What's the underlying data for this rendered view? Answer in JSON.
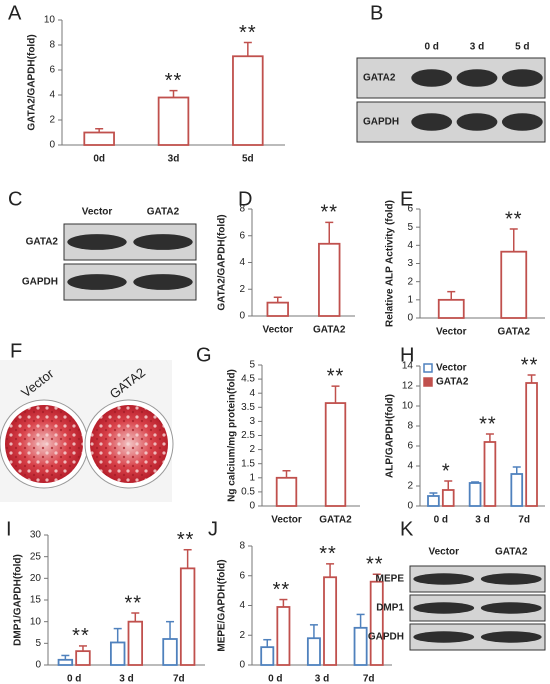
{
  "chart_data": [
    {
      "type": "bar",
      "panel": "A",
      "ylabel": "GATA2/GAPDH(fold)",
      "categories": [
        "0d",
        "3d",
        "5d"
      ],
      "values": [
        1,
        3.8,
        7.1
      ],
      "errors": [
        0.3,
        0.55,
        1.1
      ],
      "annotations": [
        null,
        "**",
        "**"
      ],
      "color": "#c0504d",
      "ylim": [
        0,
        10
      ],
      "yticks": [
        0,
        2,
        4,
        6,
        8,
        10
      ]
    },
    {
      "type": "bar",
      "panel": "D",
      "ylabel": "GATA2/GAPDH(fold)",
      "categories": [
        "Vector",
        "GATA2"
      ],
      "values": [
        1,
        5.4
      ],
      "errors": [
        0.4,
        1.6
      ],
      "annotations": [
        null,
        "**"
      ],
      "color": "#c0504d",
      "ylim": [
        0,
        8
      ],
      "yticks": [
        0,
        2,
        4,
        6,
        8
      ]
    },
    {
      "type": "bar",
      "panel": "E",
      "ylabel": "Relative ALP Activity  (fold)",
      "categories": [
        "Vector",
        "GATA2"
      ],
      "values": [
        1,
        3.65
      ],
      "errors": [
        0.45,
        1.25
      ],
      "annotations": [
        null,
        "**"
      ],
      "color": "#c0504d",
      "ylim": [
        0,
        6
      ],
      "yticks": [
        0,
        1,
        2,
        3,
        4,
        5,
        6
      ]
    },
    {
      "type": "bar",
      "panel": "G",
      "ylabel": "Ng calcium/mg protein(fold)",
      "categories": [
        "Vector",
        "GATA2"
      ],
      "values": [
        1,
        3.65
      ],
      "errors": [
        0.25,
        0.6
      ],
      "annotations": [
        null,
        "**"
      ],
      "color": "#c0504d",
      "ylim": [
        0,
        5
      ],
      "yticks": [
        0,
        0.5,
        1,
        1.5,
        2,
        2.5,
        3,
        3.5,
        4,
        4.5,
        5
      ]
    },
    {
      "type": "bar",
      "panel": "H",
      "ylabel": "ALP/GAPDH(fold)",
      "categories": [
        "0 d",
        "3 d",
        "7d"
      ],
      "series": [
        {
          "name": "Vector",
          "color": "#4f81bd",
          "values": [
            1,
            2.3,
            3.2
          ],
          "errors": [
            0.3,
            0.1,
            0.7
          ]
        },
        {
          "name": "GATA2",
          "color": "#c0504d",
          "values": [
            1.6,
            6.4,
            12.3
          ],
          "errors": [
            0.9,
            0.8,
            0.8
          ]
        }
      ],
      "annotations": [
        "*",
        "**",
        "**"
      ],
      "legend": "upper left",
      "ylim": [
        0,
        14
      ],
      "yticks": [
        0,
        2,
        4,
        6,
        8,
        10,
        12,
        14
      ]
    },
    {
      "type": "bar",
      "panel": "I",
      "ylabel": "DMP1/GAPDH(fold)",
      "categories": [
        "0 d",
        "3 d",
        "7d"
      ],
      "series": [
        {
          "name": "Vector",
          "color": "#4f81bd",
          "values": [
            1.2,
            5.2,
            6
          ],
          "errors": [
            1,
            3.2,
            4
          ]
        },
        {
          "name": "GATA2",
          "color": "#c0504d",
          "values": [
            3.2,
            10,
            22.3
          ],
          "errors": [
            1.2,
            2,
            4.3
          ]
        }
      ],
      "annotations": [
        "**",
        "**",
        "**"
      ],
      "ylim": [
        0,
        30
      ],
      "yticks": [
        0,
        5,
        10,
        15,
        20,
        25,
        30
      ]
    },
    {
      "type": "bar",
      "panel": "J",
      "ylabel": "MEPE/GAPDH(fold)",
      "categories": [
        "0 d",
        "3 d",
        "7d"
      ],
      "series": [
        {
          "name": "Vector",
          "color": "#4f81bd",
          "values": [
            1.2,
            1.8,
            2.5
          ],
          "errors": [
            0.5,
            0.9,
            0.9
          ]
        },
        {
          "name": "GATA2",
          "color": "#c0504d",
          "values": [
            3.9,
            5.9,
            5.6
          ],
          "errors": [
            0.5,
            0.9,
            0.5
          ]
        }
      ],
      "annotations": [
        "**",
        "**",
        "**"
      ],
      "ylim": [
        0,
        8
      ],
      "yticks": [
        0,
        2,
        4,
        6,
        8
      ]
    }
  ],
  "blots": [
    {
      "panel": "B",
      "columns": [
        "0 d",
        "3 d",
        "5 d"
      ],
      "rows": [
        "GATA2",
        "GAPDH"
      ]
    },
    {
      "panel": "C",
      "columns": [
        "Vector",
        "GATA2"
      ],
      "rows": [
        "GATA2",
        "GAPDH"
      ]
    },
    {
      "panel": "K",
      "columns": [
        "Vector",
        "GATA2"
      ],
      "rows": [
        "MEPE",
        "DMP1",
        "GAPDH"
      ]
    }
  ],
  "photo": {
    "panel": "F",
    "labels": [
      "Vector",
      "GATA2"
    ]
  }
}
